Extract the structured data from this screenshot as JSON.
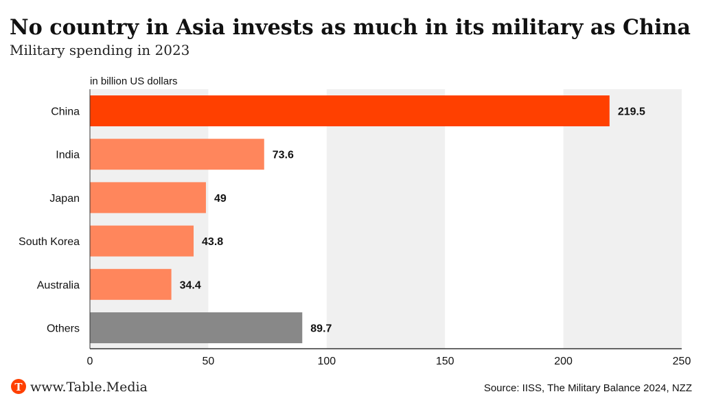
{
  "chart_data": {
    "type": "bar",
    "orientation": "horizontal",
    "title": "No country in Asia invests as much in its military as China",
    "subtitle": "Military spending in 2023",
    "unit_label": "in billion US dollars",
    "categories": [
      "China",
      "India",
      "Japan",
      "South Korea",
      "Australia",
      "Others"
    ],
    "values": [
      219.5,
      73.6,
      49,
      43.8,
      34.4,
      89.7
    ],
    "value_labels": [
      "219.5",
      "73.6",
      "49",
      "43.8",
      "34.4",
      "89.7"
    ],
    "bar_colors": [
      "#ff4000",
      "#ff865c",
      "#ff865c",
      "#ff865c",
      "#ff865c",
      "#888888"
    ],
    "xlim": [
      0,
      250
    ],
    "xticks": [
      0,
      50,
      100,
      150,
      200,
      250
    ],
    "xtick_labels": [
      "0",
      "50",
      "100",
      "150",
      "200",
      "250"
    ],
    "grid": "alternating vertical bands",
    "band_color": "#f0f0f0"
  },
  "footer": {
    "brand": "www.Table.Media",
    "brand_logo_letter": "T",
    "brand_color": "#ff4000",
    "source": "Source: IISS, The Military Balance 2024, NZZ"
  }
}
